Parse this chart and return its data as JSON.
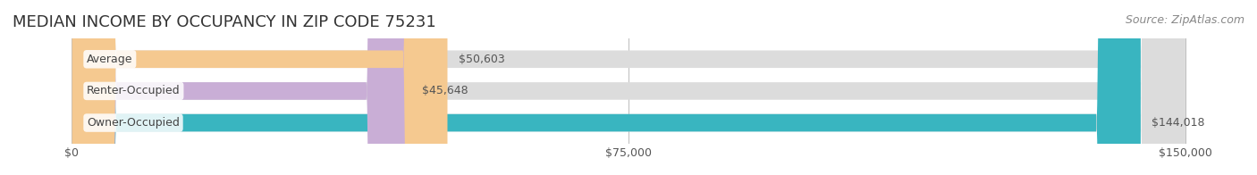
{
  "title": "MEDIAN INCOME BY OCCUPANCY IN ZIP CODE 75231",
  "source": "Source: ZipAtlas.com",
  "categories": [
    "Owner-Occupied",
    "Renter-Occupied",
    "Average"
  ],
  "values": [
    144018,
    45648,
    50603
  ],
  "bar_colors": [
    "#39b5c0",
    "#c9aed6",
    "#f5c990"
  ],
  "bg_bar_color": "#e8e8e8",
  "label_texts": [
    "$144,018",
    "$45,648",
    "$50,603"
  ],
  "x_ticks": [
    0,
    75000,
    150000
  ],
  "x_tick_labels": [
    "$0",
    "$75,000",
    "$150,000"
  ],
  "x_max": 150000,
  "bar_height": 0.55,
  "bg_color": "#ffffff",
  "title_fontsize": 13,
  "source_fontsize": 9,
  "tick_fontsize": 9,
  "label_fontsize": 9,
  "cat_fontsize": 9
}
